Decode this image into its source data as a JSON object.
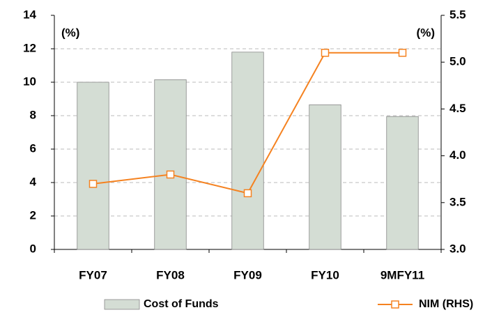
{
  "chart_data": {
    "type": "bar+line",
    "categories": [
      "FY07",
      "FY08",
      "FY09",
      "FY10",
      "9MFY11"
    ],
    "series": [
      {
        "name": "Cost of Funds",
        "type": "bar",
        "color": "#d4ddd4",
        "values": [
          10.0,
          10.15,
          11.8,
          8.65,
          7.95
        ]
      },
      {
        "name": "NIM (RHS)",
        "type": "line",
        "axis": "y2",
        "color": "#f58220",
        "values": [
          3.7,
          3.8,
          3.6,
          5.1,
          5.1
        ]
      }
    ],
    "ylim": [
      0,
      14
    ],
    "yticks": [
      0,
      2,
      4,
      6,
      8,
      10,
      12,
      14
    ],
    "y2lim": [
      3.0,
      5.5
    ],
    "y2ticks": [
      {
        "value": 3.0,
        "label": "3.0"
      },
      3.5,
      {
        "value": 4.0,
        "label": "4.0"
      },
      4.5,
      {
        "value": 5.0,
        "label": "5.0"
      },
      5.5
    ],
    "annotations": [
      "(%)",
      "(%)"
    ],
    "grid": true,
    "legend": "bottom"
  }
}
